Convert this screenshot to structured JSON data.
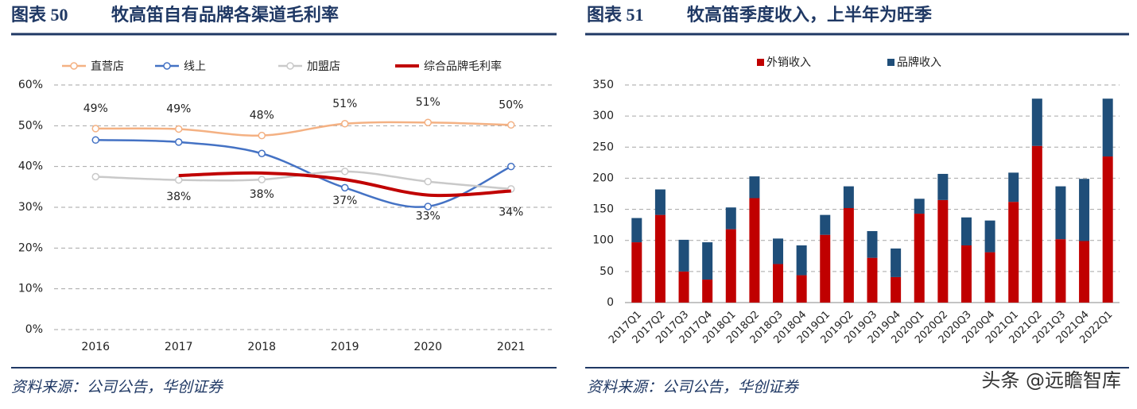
{
  "chart_data": [
    {
      "type": "line",
      "figure": "图表 50",
      "title": "牧高笛自有品牌各渠道毛利率",
      "source": "资料来源：公司公告，华创证券",
      "categories": [
        "2016",
        "2017",
        "2018",
        "2019",
        "2020",
        "2021"
      ],
      "ylim": [
        0,
        60
      ],
      "yticks": [
        {
          "value": 0,
          "label": "0%"
        },
        {
          "value": 10,
          "label": "10%"
        },
        {
          "value": 20,
          "label": "20%"
        },
        {
          "value": 30,
          "label": "30%"
        },
        {
          "value": 40,
          "label": "40%"
        },
        {
          "value": 50,
          "label": "50%"
        },
        {
          "value": 60,
          "label": "60%"
        }
      ],
      "grid": true,
      "series": [
        {
          "name": "直营店",
          "color": "#f4b183",
          "marker": true,
          "values": [
            49.3,
            49.2,
            47.6,
            50.5,
            50.8,
            50.2
          ],
          "value_labels": [
            "49%",
            "49%",
            "48%",
            "51%",
            "51%",
            "50%"
          ],
          "label_position": "above"
        },
        {
          "name": "线上",
          "color": "#4472c4",
          "marker": true,
          "values": [
            46.5,
            46.0,
            43.2,
            34.8,
            30.2,
            40.0
          ]
        },
        {
          "name": "加盟店",
          "color": "#c9c9c9",
          "marker": true,
          "values": [
            37.5,
            36.7,
            36.8,
            38.8,
            36.3,
            34.5
          ]
        },
        {
          "name": "综合品牌毛利率",
          "color": "#c00000",
          "marker": false,
          "values": [
            null,
            37.8,
            38.4,
            36.8,
            33.0,
            34.0
          ],
          "value_labels": [
            null,
            "38%",
            "38%",
            "37%",
            "33%",
            "34%"
          ],
          "label_position": "below"
        }
      ]
    },
    {
      "type": "stacked_bar",
      "figure": "图表 51",
      "title": "牧高笛季度收入，上半年为旺季",
      "source": "资料来源：公司公告，华创证券",
      "categories": [
        "2017Q1",
        "2017Q2",
        "2017Q3",
        "2017Q4",
        "2018Q1",
        "2018Q2",
        "2018Q3",
        "2018Q4",
        "2019Q1",
        "2019Q2",
        "2019Q3",
        "2019Q4",
        "2020Q1",
        "2020Q2",
        "2020Q3",
        "2020Q4",
        "2021Q1",
        "2021Q2",
        "2021Q3",
        "2021Q4",
        "2022Q1"
      ],
      "ylim": [
        0,
        350
      ],
      "yticks": [
        0,
        50,
        100,
        150,
        200,
        250,
        300,
        350
      ],
      "grid": true,
      "series": [
        {
          "name": "外销收入",
          "color": "#c00000",
          "values": [
            97,
            141,
            50,
            37,
            118,
            168,
            62,
            44,
            109,
            152,
            72,
            41,
            143,
            165,
            92,
            81,
            162,
            252,
            102,
            99,
            235
          ]
        },
        {
          "name": "品牌收入",
          "color": "#1f4e79",
          "values": [
            39,
            41,
            51,
            60,
            35,
            35,
            41,
            48,
            32,
            35,
            43,
            46,
            24,
            42,
            45,
            51,
            47,
            76,
            85,
            100,
            93
          ]
        }
      ]
    }
  ],
  "watermark": "头条 @远瞻智库"
}
